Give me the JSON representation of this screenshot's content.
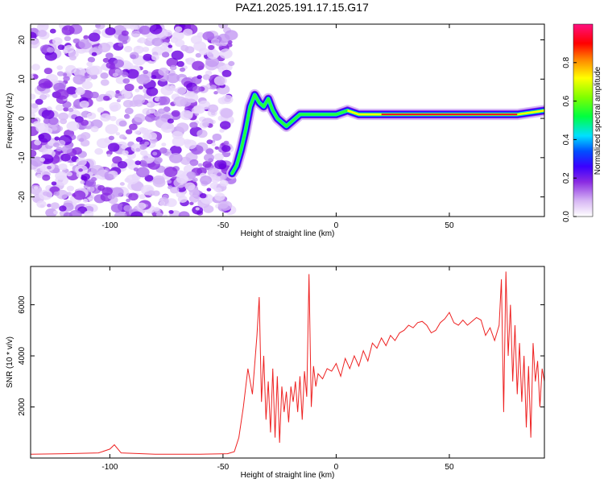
{
  "title": "PAZ1.2025.191.17.15.G17",
  "chart_data": [
    {
      "type": "heatmap",
      "xlabel": "Height of straight line (km)",
      "ylabel": "Frequency (Hz)",
      "xlim": [
        -135,
        92
      ],
      "ylim": [
        -25,
        24
      ],
      "xticks": [
        -100,
        -50,
        0,
        50
      ],
      "yticks": [
        -20,
        -10,
        0,
        10,
        20
      ],
      "colorbar": {
        "label": "Normalized spectral amplitude",
        "range": [
          0,
          1
        ],
        "ticks": [
          "0.0",
          "0.2",
          "0.4",
          "0.6",
          "0.8"
        ]
      },
      "ridge": {
        "x": [
          -46,
          -44,
          -42,
          -40,
          -38,
          -36,
          -34,
          -32,
          -30,
          -28,
          -26,
          -24,
          -22,
          -20,
          -18,
          -16,
          -12,
          -6,
          0,
          5,
          10,
          20,
          30,
          40,
          50,
          60,
          70,
          80,
          92
        ],
        "freq": [
          -14,
          -12,
          -8,
          -3,
          3,
          6,
          4,
          3,
          5,
          2,
          0,
          -1,
          -2,
          -1,
          0,
          1,
          1,
          1,
          1,
          2,
          1,
          1,
          1,
          1,
          1,
          1,
          1,
          1,
          2
        ]
      }
    },
    {
      "type": "line",
      "xlabel": "Height of straight line (km)",
      "ylabel": "SNR (10 * v/v)",
      "xlim": [
        -135,
        92
      ],
      "ylim": [
        0,
        7500
      ],
      "xticks": [
        -100,
        -50,
        0,
        50
      ],
      "yticks": [
        2000,
        4000,
        6000
      ],
      "series": [
        {
          "color": "#ee2222",
          "x": [
            -135,
            -120,
            -105,
            -100,
            -98,
            -95,
            -80,
            -60,
            -48,
            -45,
            -43,
            -41,
            -39,
            -37,
            -35,
            -34,
            -33,
            -32,
            -31,
            -30,
            -29,
            -28,
            -27,
            -26,
            -25,
            -24,
            -23,
            -22,
            -21,
            -20,
            -19,
            -18,
            -17,
            -16,
            -15,
            -14,
            -13,
            -12,
            -11,
            -10,
            -9,
            -8,
            -6,
            -4,
            -2,
            0,
            2,
            4,
            6,
            8,
            10,
            12,
            14,
            16,
            18,
            20,
            22,
            24,
            26,
            28,
            30,
            32,
            34,
            36,
            38,
            40,
            42,
            44,
            46,
            48,
            50,
            52,
            54,
            56,
            58,
            60,
            62,
            64,
            66,
            68,
            70,
            72,
            73,
            74,
            75,
            76,
            77,
            78,
            79,
            80,
            81,
            82,
            83,
            84,
            85,
            86,
            87,
            88,
            89,
            90,
            91,
            92
          ],
          "y": [
            150,
            170,
            200,
            350,
            520,
            200,
            150,
            150,
            170,
            250,
            800,
            2000,
            3500,
            2500,
            4800,
            6300,
            2200,
            4000,
            1500,
            3000,
            1000,
            3500,
            800,
            3200,
            600,
            2800,
            1800,
            2600,
            1400,
            2800,
            2200,
            3000,
            1800,
            3200,
            1500,
            3400,
            2400,
            7200,
            2000,
            3600,
            2800,
            3300,
            3100,
            3500,
            3400,
            3700,
            3200,
            3900,
            3500,
            4000,
            3600,
            4200,
            3800,
            4500,
            4300,
            4700,
            4400,
            4800,
            4600,
            4900,
            5000,
            5200,
            5100,
            5300,
            5350,
            5200,
            4900,
            5000,
            5300,
            5450,
            5700,
            5300,
            5200,
            5400,
            5200,
            5350,
            5500,
            5400,
            4800,
            5100,
            4600,
            5200,
            7000,
            1800,
            7300,
            4000,
            6000,
            3000,
            5200,
            2500,
            4500,
            2200,
            4000,
            1200,
            3600,
            800,
            4500,
            3000,
            3800,
            2000,
            3500,
            3000
          ]
        }
      ]
    }
  ]
}
